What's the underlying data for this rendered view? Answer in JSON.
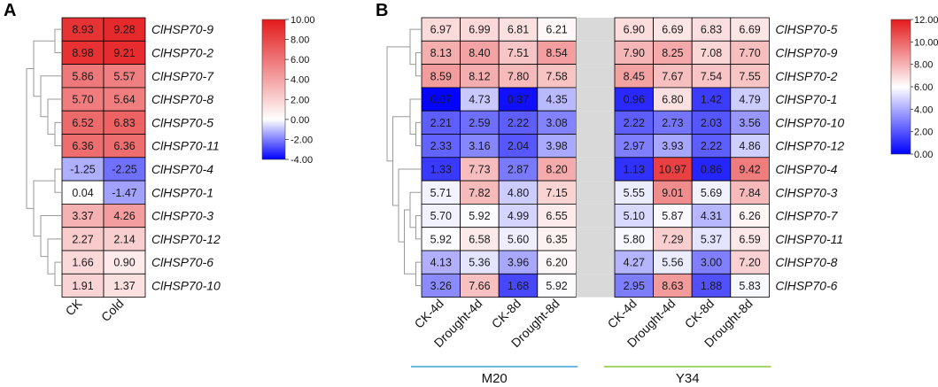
{
  "chart_data": [
    {
      "panel": "A",
      "type": "heatmap",
      "columns": [
        "CK",
        "Cold"
      ],
      "rows": [
        "ClHSP70-9",
        "ClHSP70-2",
        "ClHSP70-7",
        "ClHSP70-8",
        "ClHSP70-5",
        "ClHSP70-11",
        "ClHSP70-4",
        "ClHSP70-1",
        "ClHSP70-3",
        "ClHSP70-12",
        "ClHSP70-6",
        "ClHSP70-10"
      ],
      "values": [
        [
          8.93,
          9.28
        ],
        [
          8.98,
          9.21
        ],
        [
          5.86,
          5.57
        ],
        [
          5.7,
          5.64
        ],
        [
          6.52,
          6.83
        ],
        [
          6.36,
          6.36
        ],
        [
          -1.25,
          -2.25
        ],
        [
          0.04,
          -1.47
        ],
        [
          3.37,
          4.26
        ],
        [
          2.27,
          2.14
        ],
        [
          1.66,
          0.9
        ],
        [
          1.91,
          1.37
        ]
      ],
      "value_labels": [
        [
          "8.93",
          "9.28"
        ],
        [
          "8.98",
          "9.21"
        ],
        [
          "5.86",
          "5.57"
        ],
        [
          "5.70",
          "5.64"
        ],
        [
          "6.52",
          "6.83"
        ],
        [
          "6.36",
          "6.36"
        ],
        [
          "-1.25",
          "-2.25"
        ],
        [
          "0.04",
          "-1.47"
        ],
        [
          "3.37",
          "4.26"
        ],
        [
          "2.27",
          "2.14"
        ],
        [
          "1.66",
          "0.90"
        ],
        [
          "1.91",
          "1.37"
        ]
      ],
      "color_scale": {
        "min": -4,
        "mid": 0,
        "max": 10,
        "low_color": "#0000ff",
        "mid_color": "#ffffff",
        "high_color": "#e41a1c"
      },
      "legend_ticks": [
        "10.00",
        "8.00",
        "6.00",
        "4.00",
        "2.00",
        "0.00",
        "-2.00",
        "-4.00"
      ],
      "dendrogram": "rows"
    },
    {
      "panel": "B",
      "type": "heatmap",
      "columns": [
        "CK-4d",
        "Drought-4d",
        "CK-8d",
        "Drought-8d",
        "",
        "CK-4d",
        "Drought-4d",
        "CK-8d",
        "Drought-8d"
      ],
      "groups": [
        {
          "name": "M20",
          "color": "#3ba4d8"
        },
        {
          "name": "Y34",
          "color": "#8cc63f"
        }
      ],
      "rows": [
        "ClHSP70-5",
        "ClHSP70-9",
        "ClHSP70-2",
        "ClHSP70-1",
        "ClHSP70-10",
        "ClHSP70-12",
        "ClHSP70-4",
        "ClHSP70-3",
        "ClHSP70-7",
        "ClHSP70-11",
        "ClHSP70-8",
        "ClHSP70-6"
      ],
      "values": [
        [
          6.97,
          6.99,
          6.81,
          6.21,
          null,
          6.9,
          6.69,
          6.83,
          6.69
        ],
        [
          8.13,
          8.4,
          7.51,
          8.54,
          null,
          7.9,
          8.25,
          7.08,
          7.7
        ],
        [
          8.59,
          8.12,
          7.8,
          7.58,
          null,
          8.45,
          7.67,
          7.54,
          7.55
        ],
        [
          0.07,
          4.73,
          0.37,
          4.35,
          null,
          0.96,
          6.8,
          1.42,
          4.79
        ],
        [
          2.21,
          2.59,
          2.22,
          3.08,
          null,
          2.22,
          2.73,
          2.03,
          3.56
        ],
        [
          2.33,
          3.16,
          2.04,
          3.98,
          null,
          2.97,
          3.93,
          2.22,
          4.86
        ],
        [
          1.33,
          7.73,
          2.87,
          8.2,
          null,
          1.13,
          10.97,
          0.86,
          9.42
        ],
        [
          5.71,
          7.82,
          4.8,
          7.15,
          null,
          5.55,
          9.01,
          5.69,
          7.84
        ],
        [
          5.7,
          5.92,
          4.99,
          6.55,
          null,
          5.1,
          5.87,
          4.31,
          6.26
        ],
        [
          5.92,
          6.58,
          5.6,
          6.35,
          null,
          5.8,
          7.29,
          5.37,
          6.59
        ],
        [
          4.13,
          5.36,
          3.96,
          6.2,
          null,
          4.27,
          5.56,
          3.0,
          7.2
        ],
        [
          3.26,
          7.66,
          1.68,
          5.92,
          null,
          2.95,
          8.63,
          1.88,
          5.83
        ]
      ],
      "value_labels": [
        [
          "6.97",
          "6.99",
          "6.81",
          "6.21",
          "",
          "6.90",
          "6.69",
          "6.83",
          "6.69"
        ],
        [
          "8.13",
          "8.40",
          "7.51",
          "8.54",
          "",
          "7.90",
          "8.25",
          "7.08",
          "7.70"
        ],
        [
          "8.59",
          "8.12",
          "7.80",
          "7.58",
          "",
          "8.45",
          "7.67",
          "7.54",
          "7.55"
        ],
        [
          "0.07",
          "4.73",
          "0.37",
          "4.35",
          "",
          "0.96",
          "6.80",
          "1.42",
          "4.79"
        ],
        [
          "2.21",
          "2.59",
          "2.22",
          "3.08",
          "",
          "2.22",
          "2.73",
          "2.03",
          "3.56"
        ],
        [
          "2.33",
          "3.16",
          "2.04",
          "3.98",
          "",
          "2.97",
          "3.93",
          "2.22",
          "4.86"
        ],
        [
          "1.33",
          "7.73",
          "2.87",
          "8.20",
          "",
          "1.13",
          "10.97",
          "0.86",
          "9.42"
        ],
        [
          "5.71",
          "7.82",
          "4.80",
          "7.15",
          "",
          "5.55",
          "9.01",
          "5.69",
          "7.84"
        ],
        [
          "5.70",
          "5.92",
          "4.99",
          "6.55",
          "",
          "5.10",
          "5.87",
          "4.31",
          "6.26"
        ],
        [
          "5.92",
          "6.58",
          "5.60",
          "6.35",
          "",
          "5.80",
          "7.29",
          "5.37",
          "6.59"
        ],
        [
          "4.13",
          "5.36",
          "3.96",
          "6.20",
          "",
          "4.27",
          "5.56",
          "3.00",
          "7.20"
        ],
        [
          "3.26",
          "7.66",
          "1.68",
          "5.92",
          "",
          "2.95",
          "8.63",
          "1.88",
          "5.83"
        ]
      ],
      "color_scale": {
        "min": 0,
        "mid": 6,
        "max": 12,
        "low_color": "#0000ff",
        "mid_color": "#ffffff",
        "high_color": "#e41a1c"
      },
      "gap_color": "#d9d9d9",
      "legend_ticks": [
        "12.00",
        "10.00",
        "8.00",
        "6.00",
        "4.00",
        "2.00",
        "0.00"
      ],
      "dendrogram": "rows"
    }
  ]
}
